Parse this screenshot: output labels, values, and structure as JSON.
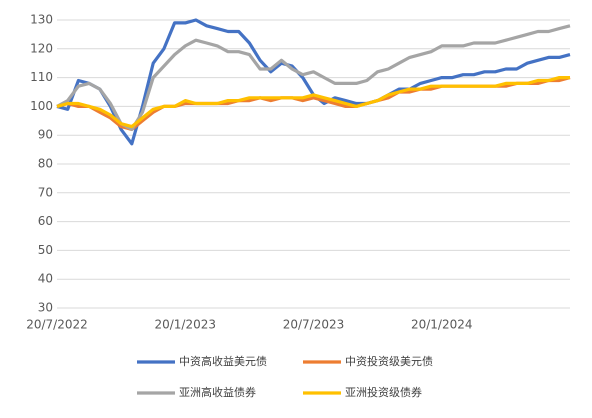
{
  "chart_data": {
    "type": "line",
    "categories": [
      "20/7/2022",
      null,
      null,
      null,
      null,
      null,
      null,
      null,
      null,
      null,
      null,
      null,
      "20/1/2023",
      null,
      null,
      null,
      null,
      null,
      null,
      null,
      null,
      null,
      null,
      null,
      "20/7/2023",
      null,
      null,
      null,
      null,
      null,
      null,
      null,
      null,
      null,
      null,
      null,
      "20/1/2024",
      null,
      null,
      null,
      null,
      null,
      null,
      null,
      null,
      null,
      null,
      null,
      null
    ],
    "series": [
      {
        "name": "中资高收益美元债",
        "color": "#4472c4",
        "values": [
          100,
          99,
          109,
          108,
          106,
          100,
          92,
          87,
          100,
          115,
          120,
          129,
          129,
          130,
          128,
          127,
          126,
          126,
          122,
          116,
          112,
          115,
          114,
          110,
          104,
          101,
          103,
          102,
          101,
          101,
          102,
          104,
          106,
          106,
          108,
          109,
          110,
          110,
          111,
          111,
          112,
          112,
          113,
          113,
          115,
          116,
          117,
          117,
          118
        ]
      },
      {
        "name": "中资投资级美元债",
        "color": "#ed7d31",
        "values": [
          100,
          101,
          100,
          100,
          98,
          96,
          93,
          92,
          95,
          98,
          100,
          100,
          101,
          101,
          101,
          101,
          101,
          102,
          102,
          103,
          102,
          103,
          103,
          102,
          103,
          102,
          101,
          100,
          100,
          101,
          102,
          103,
          105,
          105,
          106,
          106,
          107,
          107,
          107,
          107,
          107,
          107,
          107,
          108,
          108,
          108,
          109,
          109,
          110
        ]
      },
      {
        "name": "亚洲高收益债券",
        "color": "#a5a5a5",
        "values": [
          100,
          102,
          107,
          108,
          106,
          101,
          94,
          92,
          98,
          110,
          114,
          118,
          121,
          123,
          122,
          121,
          119,
          119,
          118,
          113,
          113,
          116,
          113,
          111,
          112,
          110,
          108,
          108,
          108,
          109,
          112,
          113,
          115,
          117,
          118,
          119,
          121,
          121,
          121,
          122,
          122,
          122,
          123,
          124,
          125,
          126,
          126,
          127,
          128
        ]
      },
      {
        "name": "亚洲投资级债券",
        "color": "#ffc000",
        "values": [
          100,
          101,
          101,
          100,
          99,
          97,
          94,
          93,
          96,
          99,
          100,
          100,
          102,
          101,
          101,
          101,
          102,
          102,
          103,
          103,
          103,
          103,
          103,
          103,
          104,
          103,
          102,
          101,
          100,
          101,
          102,
          104,
          105,
          106,
          106,
          107,
          107,
          107,
          107,
          107,
          107,
          107,
          108,
          108,
          108,
          109,
          109,
          110,
          110
        ]
      }
    ],
    "ylim": [
      30,
      130
    ],
    "yticks": [
      30,
      40,
      50,
      60,
      70,
      80,
      90,
      100,
      110,
      120,
      130
    ],
    "grid": true
  }
}
